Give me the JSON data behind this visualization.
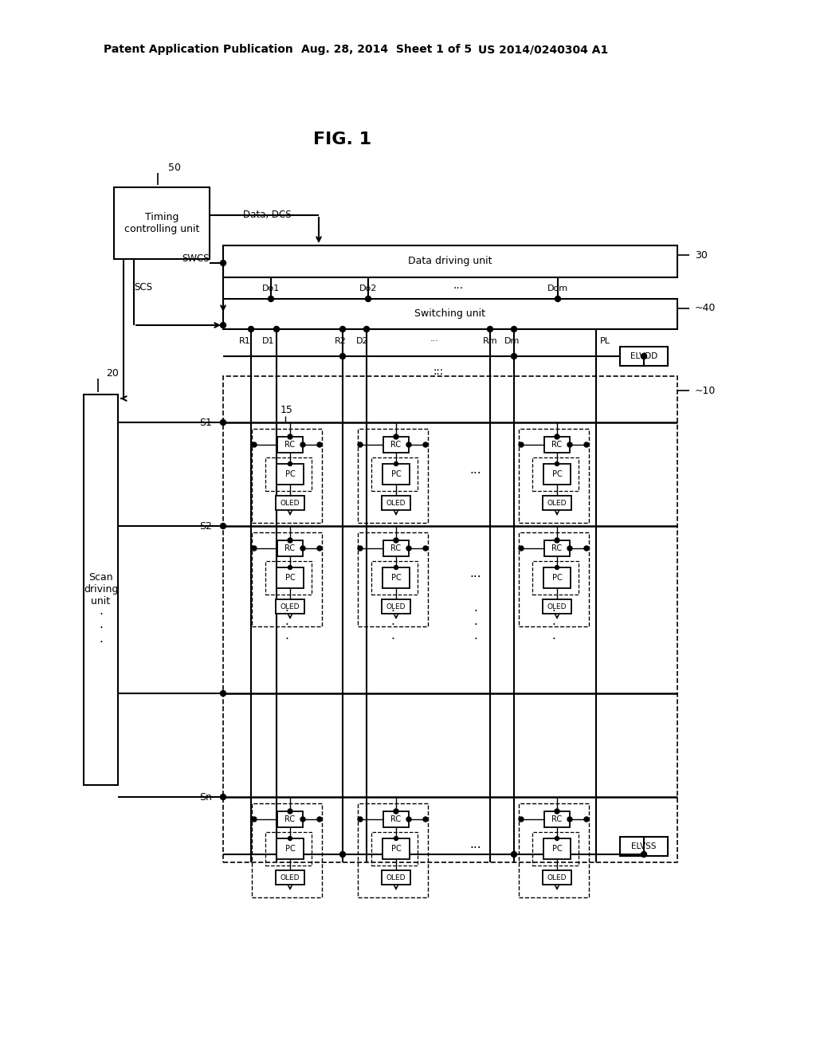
{
  "bg_color": "#ffffff",
  "header1": "Patent Application Publication",
  "header2": "Aug. 28, 2014  Sheet 1 of 5",
  "header3": "US 2014/0240304 A1",
  "fig_title": "FIG. 1",
  "lbl_50": "50",
  "lbl_30": "30",
  "lbl_40": "~40",
  "lbl_20": "20",
  "lbl_10": "~10",
  "lbl_15": "15",
  "lbl_timing": "Timing\ncontrolling unit",
  "lbl_ddu": "Data driving unit",
  "lbl_swu": "Switching unit",
  "lbl_sdu": "Scan\ndriving\nunit",
  "lbl_data_dcs": "Data, DCS",
  "lbl_swcs": "SWCS",
  "lbl_scs": "SCS",
  "lbl_do1": "Do1",
  "lbl_do2": "Do2",
  "lbl_dom": "Dom",
  "lbl_do_dots": "···",
  "lbl_r1": "R1",
  "lbl_d1": "D1",
  "lbl_r2": "R2",
  "lbl_d2": "D2",
  "lbl_col_dots": "···",
  "lbl_rm": "Rm",
  "lbl_dm": "Dm",
  "lbl_pl": "PL",
  "lbl_elvdd": "ELVDD",
  "lbl_elvss": "ELVSS",
  "lbl_s1": "S1",
  "lbl_s2": "S2",
  "lbl_sn": "Sn",
  "lbl_rc": "RC",
  "lbl_pc": "PC",
  "lbl_oled": "OLED",
  "lbl_cell_dots": "···",
  "lbl_vdots": "·\n·\n·"
}
